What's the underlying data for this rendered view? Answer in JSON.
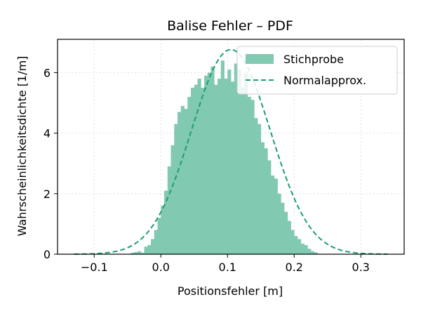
{
  "chart_data": {
    "type": "bar",
    "title": "Balise Fehler – PDF",
    "xlabel": "Positionsfehler [m]",
    "ylabel": "Wahrscheinlichkeitsdichte [1/m]",
    "xlim": [
      -0.155,
      0.365
    ],
    "ylim": [
      0,
      7.1
    ],
    "xticks": [
      -0.1,
      0.0,
      0.1,
      0.2,
      0.3
    ],
    "xtick_labels": [
      "−0.1",
      "0.0",
      "0.1",
      "0.2",
      "0.3"
    ],
    "yticks": [
      0,
      2,
      4,
      6
    ],
    "ytick_labels": [
      "0",
      "2",
      "4",
      "6"
    ],
    "grid": true,
    "legend_position": "top-right",
    "colors": {
      "histogram": "#82c9b1",
      "normal_curve": "#1b9e77",
      "axes": "#000000",
      "grid": "#d9d9d9"
    },
    "series": [
      {
        "name": "Stichprobe",
        "kind": "histogram",
        "bin_width": 0.005,
        "bin_start": -0.045,
        "values": [
          0.05,
          0.07,
          0.1,
          0.05,
          0.25,
          0.3,
          0.5,
          0.8,
          1.2,
          1.6,
          2.1,
          2.9,
          3.6,
          4.3,
          4.7,
          4.9,
          4.8,
          5.2,
          5.5,
          5.6,
          5.8,
          5.5,
          5.9,
          6.0,
          6.2,
          5.6,
          5.8,
          6.4,
          5.8,
          6.1,
          5.7,
          6.3,
          6.1,
          5.5,
          6.0,
          5.2,
          5.1,
          4.5,
          4.3,
          3.7,
          3.5,
          3.1,
          2.6,
          2.5,
          2.0,
          1.7,
          1.4,
          1.1,
          0.8,
          0.6,
          0.5,
          0.35,
          0.3,
          0.18,
          0.1,
          0.06
        ]
      },
      {
        "name": "Normalapprox.",
        "kind": "line",
        "style": "dashed",
        "mean": 0.105,
        "std": 0.059,
        "x_range": [
          -0.13,
          0.34
        ]
      }
    ]
  }
}
